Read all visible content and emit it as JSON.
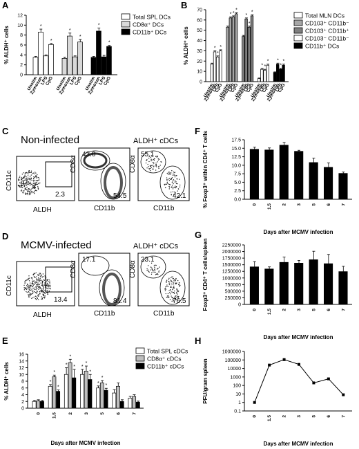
{
  "panels": {
    "A": {
      "label": "A"
    },
    "B": {
      "label": "B"
    },
    "C": {
      "label": "C",
      "title": "Non-infected",
      "gate_title": "ALDH⁺ cDCs",
      "plot1": {
        "x": "ALDH",
        "y": "CD11c",
        "gate": "2.3"
      },
      "plot2": {
        "x": "CD11b",
        "y": "CD8α",
        "tl": "43.0",
        "br": "54.5"
      },
      "plot3": {
        "x": "CD11b",
        "y": "CD8α",
        "tl": "55.1",
        "br": "42.1"
      }
    },
    "D": {
      "label": "D",
      "title": "MCMV-infected",
      "gate_title": "ALDH⁺ cDCs",
      "plot1": {
        "x": "ALDH",
        "y": "CD11c",
        "gate": "13.4"
      },
      "plot2": {
        "x": "CD11b",
        "y": "CD8α",
        "tl": "17.1",
        "br": "81.4"
      },
      "plot3": {
        "x": "CD11b",
        "y": "CD8α",
        "tl": "23.1",
        "br": "76.5"
      }
    },
    "E": {
      "label": "E"
    },
    "F": {
      "label": "F"
    },
    "G": {
      "label": "G"
    },
    "H": {
      "label": "H"
    }
  },
  "chart_data": [
    {
      "panel": "A",
      "type": "bar",
      "ylabel": "% ALDH⁺ cells",
      "ylim": [
        0,
        12
      ],
      "yticks": [
        "0",
        "2",
        "4",
        "6",
        "8",
        "10",
        "12"
      ],
      "categories": [
        "Unstim",
        "Zymosan",
        "LPS",
        "CpG"
      ],
      "series": [
        {
          "name": "Total SPL DCs",
          "color": "#ffffff",
          "values": [
            3.5,
            8.6,
            3.8,
            6.1
          ],
          "errors": [
            0.2,
            0.6,
            0.2,
            0.2
          ],
          "sig": [
            false,
            true,
            false,
            true
          ]
        },
        {
          "name": "CD8α⁺ DCs",
          "color": "#d9d9d9",
          "values": [
            3.3,
            7.8,
            3.6,
            6.6
          ],
          "errors": [
            0.2,
            0.6,
            0.2,
            0.5
          ],
          "sig": [
            false,
            true,
            false,
            true
          ]
        },
        {
          "name": "CD11b⁺ DCs",
          "color": "#000000",
          "values": [
            3.5,
            8.8,
            3.6,
            5.7
          ],
          "errors": [
            0.2,
            0.6,
            0.3,
            0.2
          ],
          "sig": [
            false,
            true,
            false,
            true
          ]
        }
      ]
    },
    {
      "panel": "B",
      "type": "bar",
      "ylabel": "% ALDH⁺ cells",
      "ylim": [
        0,
        70
      ],
      "yticks": [
        "0",
        "10",
        "20",
        "30",
        "40",
        "50",
        "60",
        "70"
      ],
      "categories": [
        "Unstim",
        "Zymosan",
        "LPS",
        "CpG"
      ],
      "series": [
        {
          "name": "Total MLN DCs",
          "color": "#ffffff",
          "values": [
            17,
            29,
            24,
            30
          ],
          "errors": [
            1,
            1,
            1,
            1
          ],
          "sig": [
            false,
            true,
            true,
            true
          ]
        },
        {
          "name": "CD103⁺ CD11b⁻",
          "color": "#a6a6a6",
          "values": [
            53,
            62,
            63,
            66
          ],
          "errors": [
            1,
            1,
            1,
            1
          ],
          "sig": [
            false,
            true,
            true,
            true
          ]
        },
        {
          "name": "CD103⁺ CD11b⁺",
          "color": "#7f7f7f",
          "values": [
            44,
            61,
            53,
            64
          ],
          "errors": [
            1,
            1,
            1,
            1
          ],
          "sig": [
            false,
            true,
            true,
            true
          ]
        },
        {
          "name": "CD103⁻ CD11b⁻",
          "color": "#ffffff",
          "values": [
            3,
            12,
            11,
            16
          ],
          "errors": [
            0.5,
            1,
            1,
            1
          ],
          "sig": [
            false,
            true,
            true,
            true
          ]
        },
        {
          "name": "CD11b⁺ DCs",
          "color": "#000000",
          "values": [
            9,
            17,
            12,
            16
          ],
          "errors": [
            0.5,
            1,
            1,
            1
          ],
          "sig": [
            false,
            true,
            true,
            true
          ]
        }
      ]
    },
    {
      "panel": "E",
      "type": "bar",
      "ylabel": "% ALDH⁺ cells",
      "xlabel": "Days after MCMV infection",
      "ylim": [
        0,
        16
      ],
      "yticks": [
        "0",
        "2",
        "4",
        "6",
        "8",
        "10",
        "12",
        "14",
        "16"
      ],
      "categories": [
        "0",
        "1.5",
        "2",
        "3",
        "5",
        "6",
        "7"
      ],
      "series": [
        {
          "name": "Total SPL cDCs",
          "color": "#ffffff",
          "values": [
            2.0,
            6.5,
            10.0,
            10.0,
            6.0,
            4.5,
            3.0
          ],
          "errors": [
            0.3,
            0.5,
            2.0,
            1.5,
            0.6,
            1.0,
            0.5
          ],
          "sig": [
            false,
            true,
            true,
            true,
            true,
            false,
            false
          ]
        },
        {
          "name": "CD8α⁺ cDCs",
          "color": "#bfbfbf",
          "values": [
            2.2,
            9.3,
            13.5,
            11.0,
            7.5,
            6.5,
            3.5
          ],
          "errors": [
            0.3,
            0.5,
            1.0,
            1.5,
            0.7,
            1.0,
            0.5
          ],
          "sig": [
            false,
            true,
            true,
            true,
            true,
            false,
            false
          ]
        },
        {
          "name": "CD11b⁺ cDCs",
          "color": "#000000",
          "values": [
            2.0,
            5.0,
            9.0,
            8.5,
            5.3,
            2.0,
            1.8
          ],
          "errors": [
            0.3,
            0.4,
            2.5,
            1.5,
            0.6,
            0.5,
            0.3
          ],
          "sig": [
            false,
            true,
            true,
            true,
            true,
            false,
            false
          ]
        }
      ]
    },
    {
      "panel": "F",
      "type": "bar",
      "ylabel": "% Foxp3⁺ within CD4⁺ T cells",
      "xlabel": "Days after MCMV infection",
      "ylim": [
        0,
        17.5
      ],
      "yticks": [
        "0.0",
        "2.5",
        "5.0",
        "7.5",
        "10.0",
        "12.5",
        "15.0",
        "17.5"
      ],
      "categories": [
        "0",
        "1.5",
        "2",
        "3",
        "5",
        "6",
        "7"
      ],
      "series": [
        {
          "name": "",
          "color": "#000000",
          "values": [
            14.7,
            14.5,
            15.9,
            14.1,
            10.8,
            9.4,
            7.6
          ],
          "errors": [
            0.6,
            0.6,
            0.8,
            0.3,
            1.3,
            1.3,
            0.4
          ]
        }
      ]
    },
    {
      "panel": "G",
      "type": "bar",
      "ylabel": "Foxp3⁺ CD4⁺ T cells/spleen",
      "xlabel": "Days after MCMV infection",
      "ylim": [
        0,
        2250000
      ],
      "yticks": [
        "0",
        "250000",
        "500000",
        "750000",
        "1000000",
        "1250000",
        "1500000",
        "1750000",
        "2000000",
        "2250000"
      ],
      "categories": [
        "0",
        "1.5",
        "2",
        "3",
        "5",
        "6",
        "7"
      ],
      "series": [
        {
          "name": "",
          "color": "#000000",
          "values": [
            1420000,
            1340000,
            1590000,
            1560000,
            1690000,
            1540000,
            1240000
          ],
          "errors": [
            200000,
            80000,
            200000,
            100000,
            320000,
            350000,
            200000
          ]
        }
      ]
    },
    {
      "panel": "H",
      "type": "line",
      "ylabel": "PFU/gram spleen",
      "xlabel": "Days after MCMV infection",
      "log_scale": true,
      "yticks": [
        "0.1",
        "1",
        "10",
        "100",
        "1000",
        "10000",
        "100000",
        "1000000"
      ],
      "categories": [
        "0",
        "1.5",
        "2",
        "3",
        "5",
        "6",
        "7"
      ],
      "series": [
        {
          "name": "",
          "color": "#000000",
          "values": [
            1,
            25000,
            110000,
            30000,
            200,
            600,
            8
          ]
        }
      ]
    }
  ]
}
